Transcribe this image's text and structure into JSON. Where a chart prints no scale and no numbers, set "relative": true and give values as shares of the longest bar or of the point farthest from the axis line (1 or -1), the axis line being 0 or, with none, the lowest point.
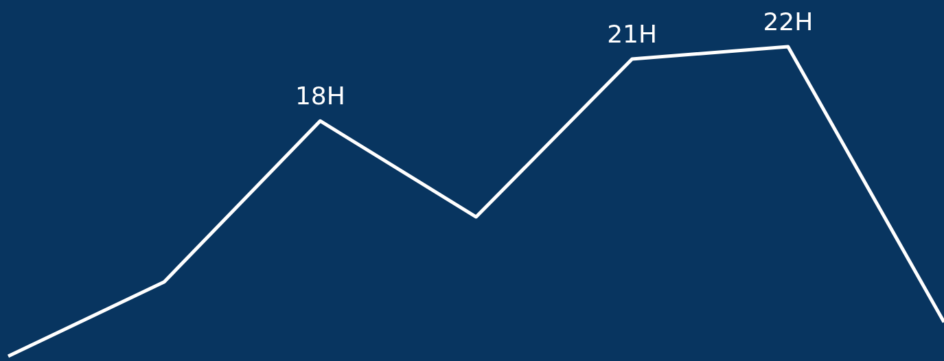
{
  "chart_data": {
    "type": "line",
    "relative": true,
    "categories": [
      null,
      null,
      "18H",
      null,
      "21H",
      "22H",
      null
    ],
    "series": [
      {
        "color": "#ffffff",
        "values": [
          0,
          0.24,
          0.76,
          0.45,
          0.96,
          1,
          0.11
        ]
      }
    ],
    "line_style": "solid"
  }
}
